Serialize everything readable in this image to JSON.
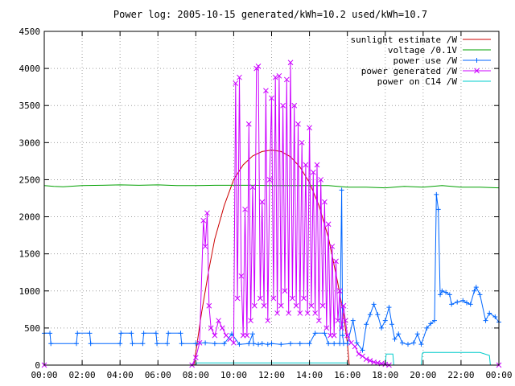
{
  "chart_data": {
    "type": "line",
    "title": "Power log: 2005-10-15 generated/kWh=10.2 used/kWh=10.7",
    "xlabel": "",
    "ylabel": "",
    "x_unit": "hours",
    "xlim": [
      0,
      24
    ],
    "ylim": [
      0,
      4500
    ],
    "x_ticks": [
      "00:00",
      "02:00",
      "04:00",
      "06:00",
      "08:00",
      "10:00",
      "12:00",
      "14:00",
      "16:00",
      "18:00",
      "20:00",
      "22:00",
      "00:00"
    ],
    "y_ticks": [
      "0",
      "500",
      "1000",
      "1500",
      "2000",
      "2500",
      "3000",
      "3500",
      "4000",
      "4500"
    ],
    "grid": true,
    "legend_position": "top-right",
    "series": [
      {
        "name": "sunlight estimate /W",
        "color": "#cc0000",
        "marker": "none",
        "x": [
          7.9,
          8.3,
          8.7,
          9.0,
          9.5,
          10.0,
          10.5,
          11.0,
          11.5,
          12.0,
          12.5,
          13.0,
          13.5,
          14.0,
          14.5,
          15.0,
          15.5,
          15.8,
          16.0,
          16.1
        ],
        "y": [
          0,
          700,
          1300,
          1700,
          2150,
          2500,
          2700,
          2820,
          2880,
          2900,
          2880,
          2810,
          2670,
          2460,
          2150,
          1720,
          1100,
          680,
          300,
          0
        ]
      },
      {
        "name": "voltage /0.1V",
        "color": "#00a000",
        "marker": "none",
        "x": [
          0,
          0.5,
          1,
          2,
          3,
          4,
          5,
          6,
          7,
          8,
          9,
          10,
          11,
          12,
          13,
          14,
          15,
          16,
          17,
          18,
          19,
          20,
          21,
          22,
          23,
          24
        ],
        "y": [
          2420,
          2410,
          2405,
          2420,
          2425,
          2430,
          2425,
          2430,
          2420,
          2420,
          2425,
          2425,
          2425,
          2420,
          2420,
          2420,
          2420,
          2400,
          2400,
          2390,
          2410,
          2400,
          2420,
          2400,
          2400,
          2390
        ]
      },
      {
        "name": "power use /W",
        "color": "#0066ff",
        "marker": "plus",
        "x": [
          0,
          0.3,
          0.35,
          1.7,
          1.75,
          2.4,
          2.45,
          4.0,
          4.05,
          4.6,
          4.65,
          5.2,
          5.25,
          5.9,
          5.95,
          6.5,
          6.55,
          7.2,
          7.25,
          8.0,
          8.5,
          9.0,
          9.5,
          9.9,
          10.3,
          10.8,
          11.0,
          11.05,
          11.3,
          11.5,
          11.8,
          12.0,
          12.5,
          13.0,
          13.5,
          14.0,
          14.3,
          14.8,
          15.0,
          15.3,
          15.6,
          15.7,
          15.75,
          15.8,
          16.0,
          16.3,
          16.5,
          16.8,
          17.0,
          17.2,
          17.4,
          17.6,
          17.8,
          18.0,
          18.2,
          18.35,
          18.5,
          18.7,
          18.9,
          19.2,
          19.5,
          19.7,
          19.9,
          20.2,
          20.4,
          20.6,
          20.7,
          20.8,
          20.9,
          21.0,
          21.2,
          21.4,
          21.5,
          21.8,
          22.1,
          22.3,
          22.5,
          22.7,
          22.8,
          23.0,
          23.3,
          23.5,
          23.8,
          24.0
        ],
        "y": [
          430,
          430,
          290,
          290,
          430,
          430,
          290,
          290,
          430,
          430,
          290,
          290,
          430,
          430,
          290,
          290,
          430,
          430,
          290,
          290,
          300,
          290,
          290,
          420,
          280,
          290,
          420,
          290,
          280,
          290,
          280,
          290,
          280,
          290,
          290,
          290,
          430,
          430,
          290,
          290,
          290,
          2360,
          400,
          290,
          290,
          600,
          300,
          200,
          550,
          680,
          820,
          680,
          500,
          600,
          780,
          550,
          350,
          420,
          300,
          280,
          300,
          420,
          280,
          500,
          560,
          600,
          2300,
          2100,
          950,
          1000,
          980,
          950,
          820,
          850,
          870,
          840,
          820,
          1000,
          1050,
          950,
          600,
          700,
          650,
          580
        ]
      },
      {
        "name": "power generated /W",
        "color": "#cc00ff",
        "marker": "x",
        "x": [
          0,
          7.8,
          8.0,
          8.2,
          8.4,
          8.5,
          8.6,
          8.7,
          8.8,
          9.0,
          9.2,
          9.4,
          9.6,
          9.8,
          10.0,
          10.1,
          10.2,
          10.3,
          10.4,
          10.5,
          10.6,
          10.7,
          10.8,
          10.9,
          11.0,
          11.1,
          11.2,
          11.3,
          11.4,
          11.5,
          11.6,
          11.7,
          11.8,
          11.9,
          12.0,
          12.1,
          12.2,
          12.3,
          12.4,
          12.5,
          12.6,
          12.7,
          12.8,
          12.9,
          13.0,
          13.1,
          13.2,
          13.3,
          13.4,
          13.5,
          13.6,
          13.7,
          13.8,
          13.9,
          14.0,
          14.1,
          14.2,
          14.3,
          14.4,
          14.5,
          14.6,
          14.7,
          14.8,
          14.9,
          15.0,
          15.1,
          15.2,
          15.3,
          15.4,
          15.5,
          15.6,
          15.7,
          15.8,
          15.9,
          16.0,
          16.2,
          16.4,
          16.6,
          16.8,
          17.0,
          17.2,
          17.4,
          17.6,
          17.8,
          18.0,
          18.2,
          24.0
        ],
        "y": [
          0,
          0,
          100,
          300,
          1950,
          1600,
          2050,
          800,
          500,
          400,
          600,
          500,
          400,
          350,
          300,
          3800,
          900,
          3880,
          1200,
          400,
          2100,
          400,
          3250,
          600,
          2400,
          800,
          4000,
          4030,
          900,
          2200,
          800,
          3700,
          600,
          2500,
          3600,
          900,
          3880,
          700,
          3900,
          800,
          3500,
          1000,
          3850,
          700,
          4080,
          900,
          3500,
          800,
          3250,
          700,
          3000,
          900,
          2700,
          700,
          3200,
          800,
          2600,
          700,
          2700,
          600,
          2500,
          800,
          2200,
          500,
          1900,
          400,
          1600,
          400,
          1400,
          600,
          1000,
          500,
          800,
          600,
          400,
          300,
          250,
          150,
          120,
          80,
          60,
          40,
          30,
          20,
          10,
          0,
          0
        ]
      },
      {
        "name": "power on C14 /W",
        "color": "#00cccc",
        "marker": "none",
        "x": [
          0,
          8.0,
          8.05,
          16.0,
          16.05,
          18.0,
          18.05,
          18.4,
          18.45,
          19.9,
          19.95,
          20.0,
          20.05,
          23.0,
          23.5,
          23.55,
          24.0
        ],
        "y": [
          0,
          0,
          30,
          30,
          0,
          0,
          150,
          150,
          0,
          0,
          150,
          170,
          170,
          170,
          130,
          0,
          0
        ]
      }
    ]
  }
}
